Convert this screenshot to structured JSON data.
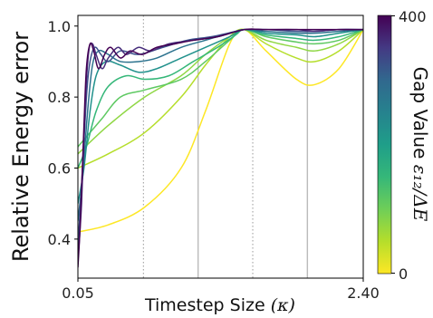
{
  "chart_data": {
    "type": "line",
    "xlabel_text": "Timestep Size",
    "xlabel_symbol": "(κ)",
    "ylabel": "Relative Energy error",
    "xlim": [
      0.05,
      2.4
    ],
    "ylim": [
      0.29,
      1.03
    ],
    "x_tick_labels": [
      "0.05",
      "2.40"
    ],
    "y_ticks": [
      0.4,
      0.6,
      0.8,
      1.0
    ],
    "y_tick_labels": [
      "0.4",
      "0.6",
      "0.8",
      "1.0"
    ],
    "vlines": [
      {
        "x": 0.59,
        "style": "dotted"
      },
      {
        "x": 1.04,
        "style": "solid"
      },
      {
        "x": 1.49,
        "style": "dotted"
      },
      {
        "x": 1.94,
        "style": "solid"
      }
    ],
    "colorbar": {
      "label_text": "Gap Value",
      "label_symbol": "ε₁₂/ΔE",
      "min_label": "0",
      "max_label": "400",
      "colormap": "viridis"
    },
    "series": [
      {
        "gap": 0,
        "color": "#fde725",
        "x": [
          0.05,
          0.3,
          0.6,
          0.9,
          1.1,
          1.3,
          1.42,
          1.6,
          1.85,
          2.0,
          2.2,
          2.4
        ],
        "y": [
          0.42,
          0.44,
          0.49,
          0.6,
          0.76,
          0.95,
          0.99,
          0.93,
          0.85,
          0.835,
          0.88,
          0.99
        ]
      },
      {
        "gap": 40,
        "color": "#b5de2b",
        "x": [
          0.05,
          0.3,
          0.6,
          0.9,
          1.1,
          1.3,
          1.42,
          1.6,
          1.85,
          2.0,
          2.2,
          2.4
        ],
        "y": [
          0.6,
          0.64,
          0.7,
          0.8,
          0.89,
          0.97,
          0.99,
          0.95,
          0.91,
          0.9,
          0.93,
          0.99
        ]
      },
      {
        "gap": 80,
        "color": "#8fd744",
        "x": [
          0.05,
          0.3,
          0.6,
          0.9,
          1.1,
          1.3,
          1.42,
          1.6,
          1.85,
          2.0,
          2.2,
          2.4
        ],
        "y": [
          0.64,
          0.72,
          0.8,
          0.86,
          0.92,
          0.97,
          0.99,
          0.96,
          0.94,
          0.93,
          0.95,
          0.99
        ]
      },
      {
        "gap": 120,
        "color": "#5ec962",
        "x": [
          0.05,
          0.15,
          0.25,
          0.4,
          0.6,
          0.9,
          1.1,
          1.3,
          1.42,
          1.6,
          1.85,
          2.0,
          2.2,
          2.4
        ],
        "y": [
          0.66,
          0.7,
          0.74,
          0.8,
          0.82,
          0.85,
          0.9,
          0.96,
          0.99,
          0.97,
          0.955,
          0.95,
          0.96,
          0.99
        ]
      },
      {
        "gap": 160,
        "color": "#35b779",
        "x": [
          0.05,
          0.12,
          0.2,
          0.3,
          0.45,
          0.6,
          0.8,
          1.0,
          1.2,
          1.35,
          1.42,
          1.6,
          1.85,
          2.0,
          2.2,
          2.4
        ],
        "y": [
          0.6,
          0.66,
          0.76,
          0.83,
          0.86,
          0.85,
          0.86,
          0.9,
          0.94,
          0.975,
          0.99,
          0.975,
          0.965,
          0.96,
          0.97,
          0.99
        ]
      },
      {
        "gap": 200,
        "color": "#21918c",
        "x": [
          0.05,
          0.1,
          0.15,
          0.2,
          0.28,
          0.4,
          0.55,
          0.7,
          0.9,
          1.1,
          1.3,
          1.42,
          1.6,
          1.85,
          2.0,
          2.2,
          2.4
        ],
        "y": [
          0.5,
          0.6,
          0.76,
          0.86,
          0.9,
          0.89,
          0.87,
          0.88,
          0.91,
          0.94,
          0.97,
          0.99,
          0.98,
          0.975,
          0.97,
          0.98,
          0.99
        ]
      },
      {
        "gap": 240,
        "color": "#2c728e",
        "x": [
          0.05,
          0.09,
          0.13,
          0.17,
          0.22,
          0.3,
          0.4,
          0.55,
          0.7,
          0.9,
          1.1,
          1.3,
          1.42,
          1.6,
          1.85,
          2.0,
          2.2,
          2.4
        ],
        "y": [
          0.45,
          0.58,
          0.76,
          0.89,
          0.93,
          0.92,
          0.9,
          0.9,
          0.91,
          0.94,
          0.96,
          0.98,
          0.99,
          0.985,
          0.98,
          0.98,
          0.985,
          0.99
        ]
      },
      {
        "gap": 280,
        "color": "#3b528b",
        "x": [
          0.05,
          0.08,
          0.12,
          0.15,
          0.19,
          0.24,
          0.3,
          0.4,
          0.55,
          0.75,
          0.95,
          1.15,
          1.35,
          1.42,
          1.6,
          1.85,
          2.0,
          2.2,
          2.4
        ],
        "y": [
          0.38,
          0.55,
          0.8,
          0.9,
          0.94,
          0.92,
          0.9,
          0.93,
          0.92,
          0.94,
          0.96,
          0.97,
          0.985,
          0.99,
          0.99,
          0.985,
          0.985,
          0.99,
          0.99
        ]
      },
      {
        "gap": 320,
        "color": "#472d7b",
        "x": [
          0.05,
          0.08,
          0.11,
          0.14,
          0.17,
          0.2,
          0.25,
          0.3,
          0.38,
          0.45,
          0.55,
          0.65,
          0.8,
          1.0,
          1.2,
          1.42,
          1.6,
          1.85,
          2.0,
          2.2,
          2.4
        ],
        "y": [
          0.34,
          0.5,
          0.78,
          0.93,
          0.95,
          0.92,
          0.88,
          0.91,
          0.94,
          0.92,
          0.94,
          0.93,
          0.95,
          0.96,
          0.97,
          0.99,
          0.99,
          0.99,
          0.985,
          0.99,
          0.99
        ]
      },
      {
        "gap": 360,
        "color": "#440154",
        "x": [
          0.05,
          0.07,
          0.1,
          0.12,
          0.15,
          0.18,
          0.22,
          0.27,
          0.32,
          0.4,
          0.48,
          0.58,
          0.7,
          0.85,
          1.0,
          1.2,
          1.42,
          1.6,
          1.85,
          2.0,
          2.2,
          2.4
        ],
        "y": [
          0.32,
          0.45,
          0.72,
          0.88,
          0.95,
          0.93,
          0.88,
          0.92,
          0.94,
          0.91,
          0.93,
          0.92,
          0.94,
          0.95,
          0.96,
          0.97,
          0.99,
          0.99,
          0.99,
          0.99,
          0.99,
          0.99
        ]
      }
    ]
  }
}
